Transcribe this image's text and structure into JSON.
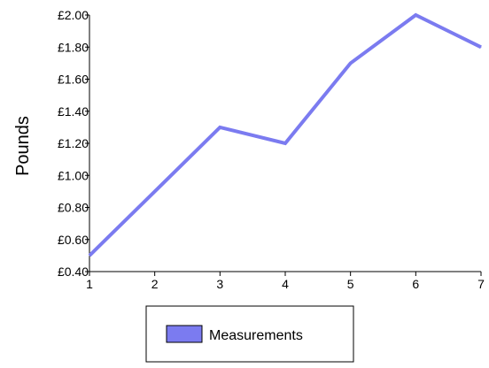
{
  "chart_data": {
    "type": "line",
    "title": "",
    "xlabel": "",
    "ylabel": "Pounds",
    "x": [
      1,
      2,
      3,
      4,
      5,
      6,
      7
    ],
    "series": [
      {
        "name": "Measurements",
        "values": [
          0.5,
          0.9,
          1.3,
          1.2,
          1.7,
          2.0,
          1.8
        ]
      }
    ],
    "xlim": [
      1,
      7
    ],
    "ylim": [
      0.4,
      2.0
    ],
    "yticks": [
      0.4,
      0.6,
      0.8,
      1.0,
      1.2,
      1.4,
      1.6,
      1.8,
      2.0
    ],
    "ytick_labels": [
      "£0.40",
      "£0.60",
      "£0.80",
      "£1.00",
      "£1.20",
      "£1.40",
      "£1.60",
      "£1.80",
      "£2.00"
    ],
    "xticks": [
      1,
      2,
      3,
      4,
      5,
      6,
      7
    ],
    "xtick_labels": [
      "1",
      "2",
      "3",
      "4",
      "5",
      "6",
      "7"
    ],
    "grid": false,
    "legend": {
      "position": "bottom",
      "label": "Measurements"
    },
    "colors": {
      "series": "#7b7bf0",
      "axis": "#000000"
    }
  }
}
